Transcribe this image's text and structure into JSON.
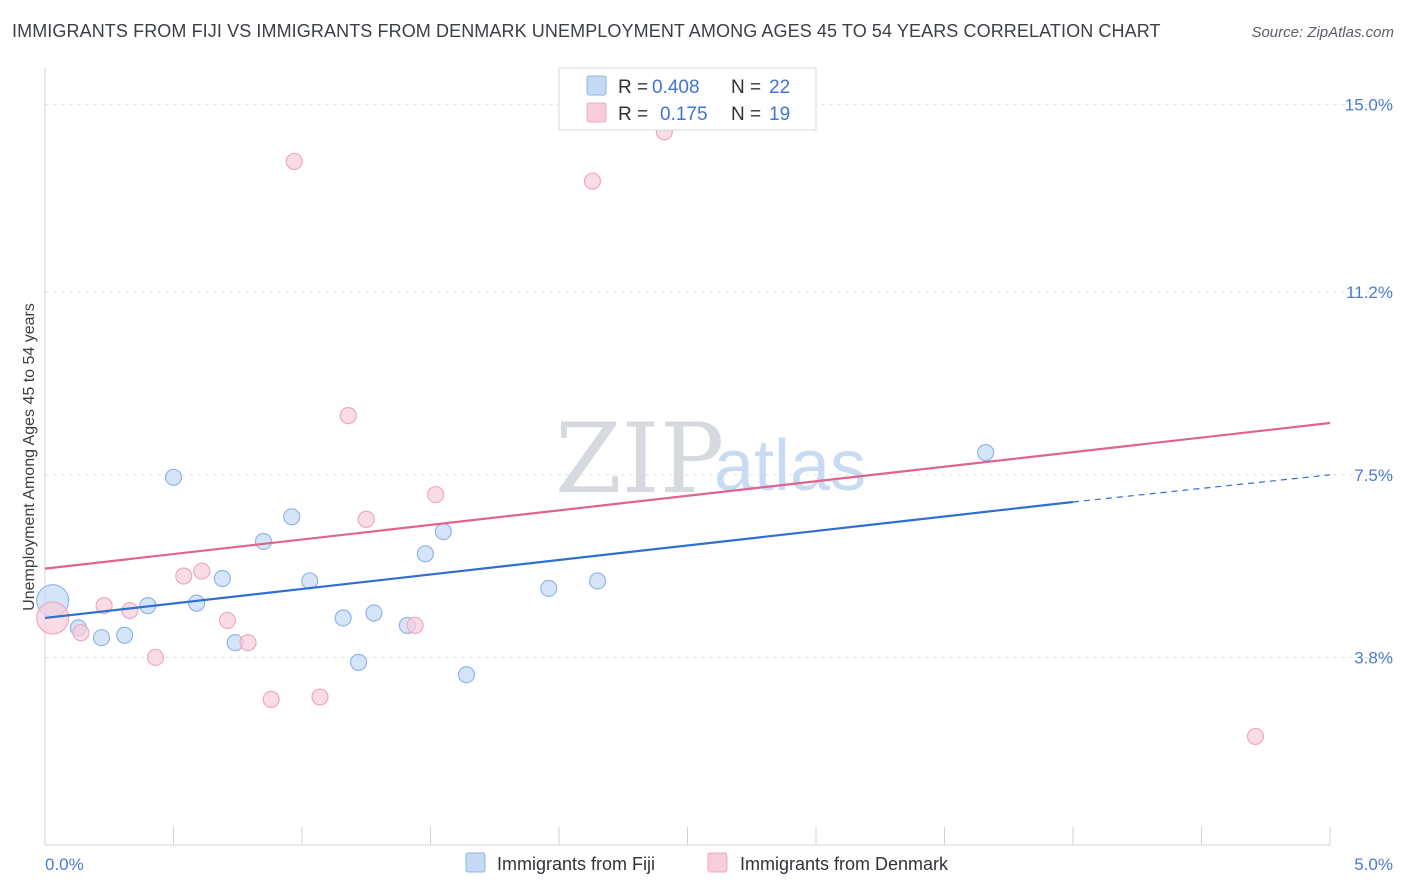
{
  "chart_data": {
    "type": "scatter",
    "title": "IMMIGRANTS FROM FIJI VS IMMIGRANTS FROM DENMARK UNEMPLOYMENT AMONG AGES 45 TO 54 YEARS CORRELATION CHART",
    "source": "Source: ZipAtlas.com",
    "ylabel": "Unemployment Among Ages 45 to 54 years",
    "xlim": [
      0,
      5
    ],
    "ylim": [
      0,
      15.5
    ],
    "x_tick_labels": [
      {
        "value": 0,
        "label": "0.0%"
      },
      {
        "value": 5,
        "label": "5.0%"
      }
    ],
    "y_tick_labels": [
      {
        "value": 3.8,
        "label": "3.8%"
      },
      {
        "value": 7.5,
        "label": "7.5%"
      },
      {
        "value": 11.2,
        "label": "11.2%"
      },
      {
        "value": 15.0,
        "label": "15.0%"
      }
    ],
    "watermark": {
      "part1": "ZIP",
      "part2": "atlas"
    },
    "legend": {
      "r_label": "R =",
      "n_label": "N =",
      "entries": [
        {
          "r": "0.408",
          "n": "22"
        },
        {
          "r": "0.175",
          "n": "19"
        }
      ]
    },
    "series": [
      {
        "name": "Immigrants from Fiji",
        "color": "#8fb5ea",
        "fill": "#c5d9f5",
        "line_color": "#2f6fcf",
        "trend": {
          "x0": 0,
          "y0": 4.6,
          "x1": 4.0,
          "y1": 6.95,
          "dash_to_x": 5.0,
          "dash_to_y": 7.5
        },
        "points": [
          {
            "x": 0.03,
            "y": 4.95,
            "big": true
          },
          {
            "x": 0.13,
            "y": 4.4
          },
          {
            "x": 0.22,
            "y": 4.2
          },
          {
            "x": 0.31,
            "y": 4.25
          },
          {
            "x": 0.4,
            "y": 4.85
          },
          {
            "x": 0.5,
            "y": 7.45
          },
          {
            "x": 0.59,
            "y": 4.9
          },
          {
            "x": 0.69,
            "y": 5.4
          },
          {
            "x": 0.74,
            "y": 4.1
          },
          {
            "x": 0.85,
            "y": 6.15
          },
          {
            "x": 0.96,
            "y": 6.65
          },
          {
            "x": 1.03,
            "y": 5.35
          },
          {
            "x": 1.16,
            "y": 4.6
          },
          {
            "x": 1.22,
            "y": 3.7
          },
          {
            "x": 1.28,
            "y": 4.7
          },
          {
            "x": 1.41,
            "y": 4.45
          },
          {
            "x": 1.48,
            "y": 5.9
          },
          {
            "x": 1.55,
            "y": 6.35
          },
          {
            "x": 1.64,
            "y": 3.45
          },
          {
            "x": 1.96,
            "y": 5.2
          },
          {
            "x": 2.15,
            "y": 5.35
          },
          {
            "x": 3.66,
            "y": 7.95
          }
        ]
      },
      {
        "name": "Immigrants from Denmark",
        "color": "#f0a8c2",
        "fill": "#f7cdda",
        "line_color": "#e0628e",
        "trend": {
          "x0": 0,
          "y0": 5.6,
          "x1": 5.0,
          "y1": 8.55
        },
        "points": [
          {
            "x": 0.03,
            "y": 4.6,
            "big": true
          },
          {
            "x": 0.14,
            "y": 4.3
          },
          {
            "x": 0.23,
            "y": 4.85
          },
          {
            "x": 0.33,
            "y": 4.75
          },
          {
            "x": 0.43,
            "y": 3.8
          },
          {
            "x": 0.54,
            "y": 5.45
          },
          {
            "x": 0.61,
            "y": 5.55
          },
          {
            "x": 0.71,
            "y": 4.55
          },
          {
            "x": 0.79,
            "y": 4.1
          },
          {
            "x": 0.88,
            "y": 2.95
          },
          {
            "x": 0.97,
            "y": 13.85
          },
          {
            "x": 1.07,
            "y": 3.0
          },
          {
            "x": 1.18,
            "y": 8.7
          },
          {
            "x": 1.25,
            "y": 6.6
          },
          {
            "x": 1.44,
            "y": 4.45
          },
          {
            "x": 1.52,
            "y": 7.1
          },
          {
            "x": 2.13,
            "y": 13.45
          },
          {
            "x": 2.41,
            "y": 14.45
          },
          {
            "x": 4.71,
            "y": 2.2
          }
        ]
      }
    ]
  }
}
